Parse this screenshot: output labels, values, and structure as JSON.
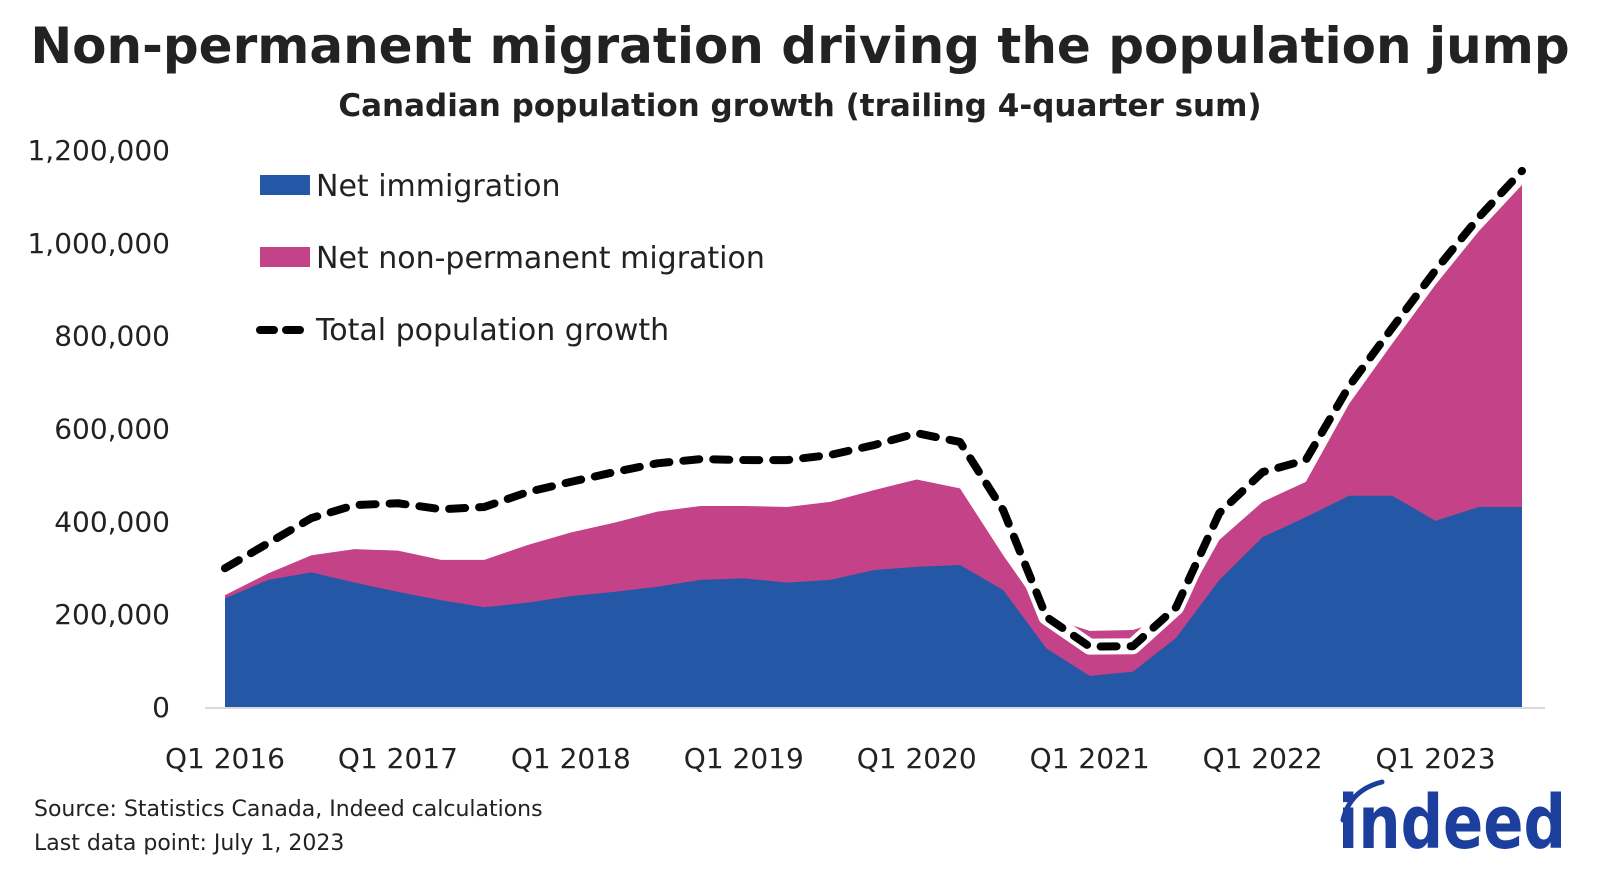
{
  "chart_data": {
    "type": "area",
    "stacked": true,
    "title": "Non-permanent migration driving the population jump",
    "subtitle": "Canadian population growth (trailing 4-quarter sum)",
    "x": [
      "Q1 2016",
      "Q2 2016",
      "Q3 2016",
      "Q4 2016",
      "Q1 2017",
      "Q2 2017",
      "Q3 2017",
      "Q4 2017",
      "Q1 2018",
      "Q2 2018",
      "Q3 2018",
      "Q4 2018",
      "Q1 2019",
      "Q2 2019",
      "Q3 2019",
      "Q4 2019",
      "Q1 2020",
      "Q2 2020",
      "Q3 2020",
      "Q4 2020",
      "Q1 2021",
      "Q2 2021",
      "Q3 2021",
      "Q4 2021",
      "Q1 2022",
      "Q2 2022",
      "Q3 2022",
      "Q4 2022",
      "Q1 2023",
      "Q2 2023",
      "Q3 2023"
    ],
    "x_tick_labels": [
      "Q1 2016",
      "Q1 2017",
      "Q1 2018",
      "Q1 2019",
      "Q1 2020",
      "Q1 2021",
      "Q1 2022",
      "Q1 2023"
    ],
    "y_tick_labels": [
      "0",
      "200,000",
      "400,000",
      "600,000",
      "800,000",
      "1,000,000",
      "1,200,000"
    ],
    "ylim": [
      0,
      1200000
    ],
    "grid": false,
    "legend_position": "top-left",
    "series": [
      {
        "name": "Net immigration",
        "kind": "area",
        "color": "#2557a7",
        "values": [
          234000,
          274000,
          290000,
          268000,
          248000,
          230000,
          215000,
          225000,
          239000,
          248000,
          259000,
          274000,
          277000,
          268000,
          274000,
          295000,
          302000,
          306000,
          252000,
          126000,
          67000,
          76000,
          149000,
          274000,
          366000,
          409000,
          455000,
          455000,
          401000,
          431000,
          431000
        ]
      },
      {
        "name": "Net non-permanent migration",
        "kind": "area",
        "color": "#c44287",
        "values": [
          7000,
          14000,
          37000,
          72000,
          89000,
          87000,
          102000,
          124000,
          137000,
          149000,
          162000,
          159000,
          156000,
          163000,
          168000,
          172000,
          188000,
          165000,
          75000,
          68000,
          97000,
          90000,
          45000,
          86000,
          76000,
          76000,
          198000,
          328000,
          509000,
          594000,
          694000
        ]
      },
      {
        "name": "Total population growth",
        "kind": "dashed-line",
        "color": "#000000",
        "values": [
          299000,
          353000,
          407000,
          435000,
          439000,
          426000,
          431000,
          463000,
          485000,
          506000,
          525000,
          534000,
          532000,
          532000,
          543000,
          564000,
          590000,
          571000,
          424000,
          194000,
          130000,
          131000,
          215000,
          418000,
          506000,
          532000,
          691000,
          817000,
          941000,
          1055000,
          1155000
        ]
      }
    ]
  },
  "footer": {
    "source": "Source: Statistics Canada, Indeed calculations",
    "last_data_point": "Last data point: July 1, 2023"
  },
  "logo": {
    "text": "indeed",
    "color": "#1c3f9e"
  }
}
